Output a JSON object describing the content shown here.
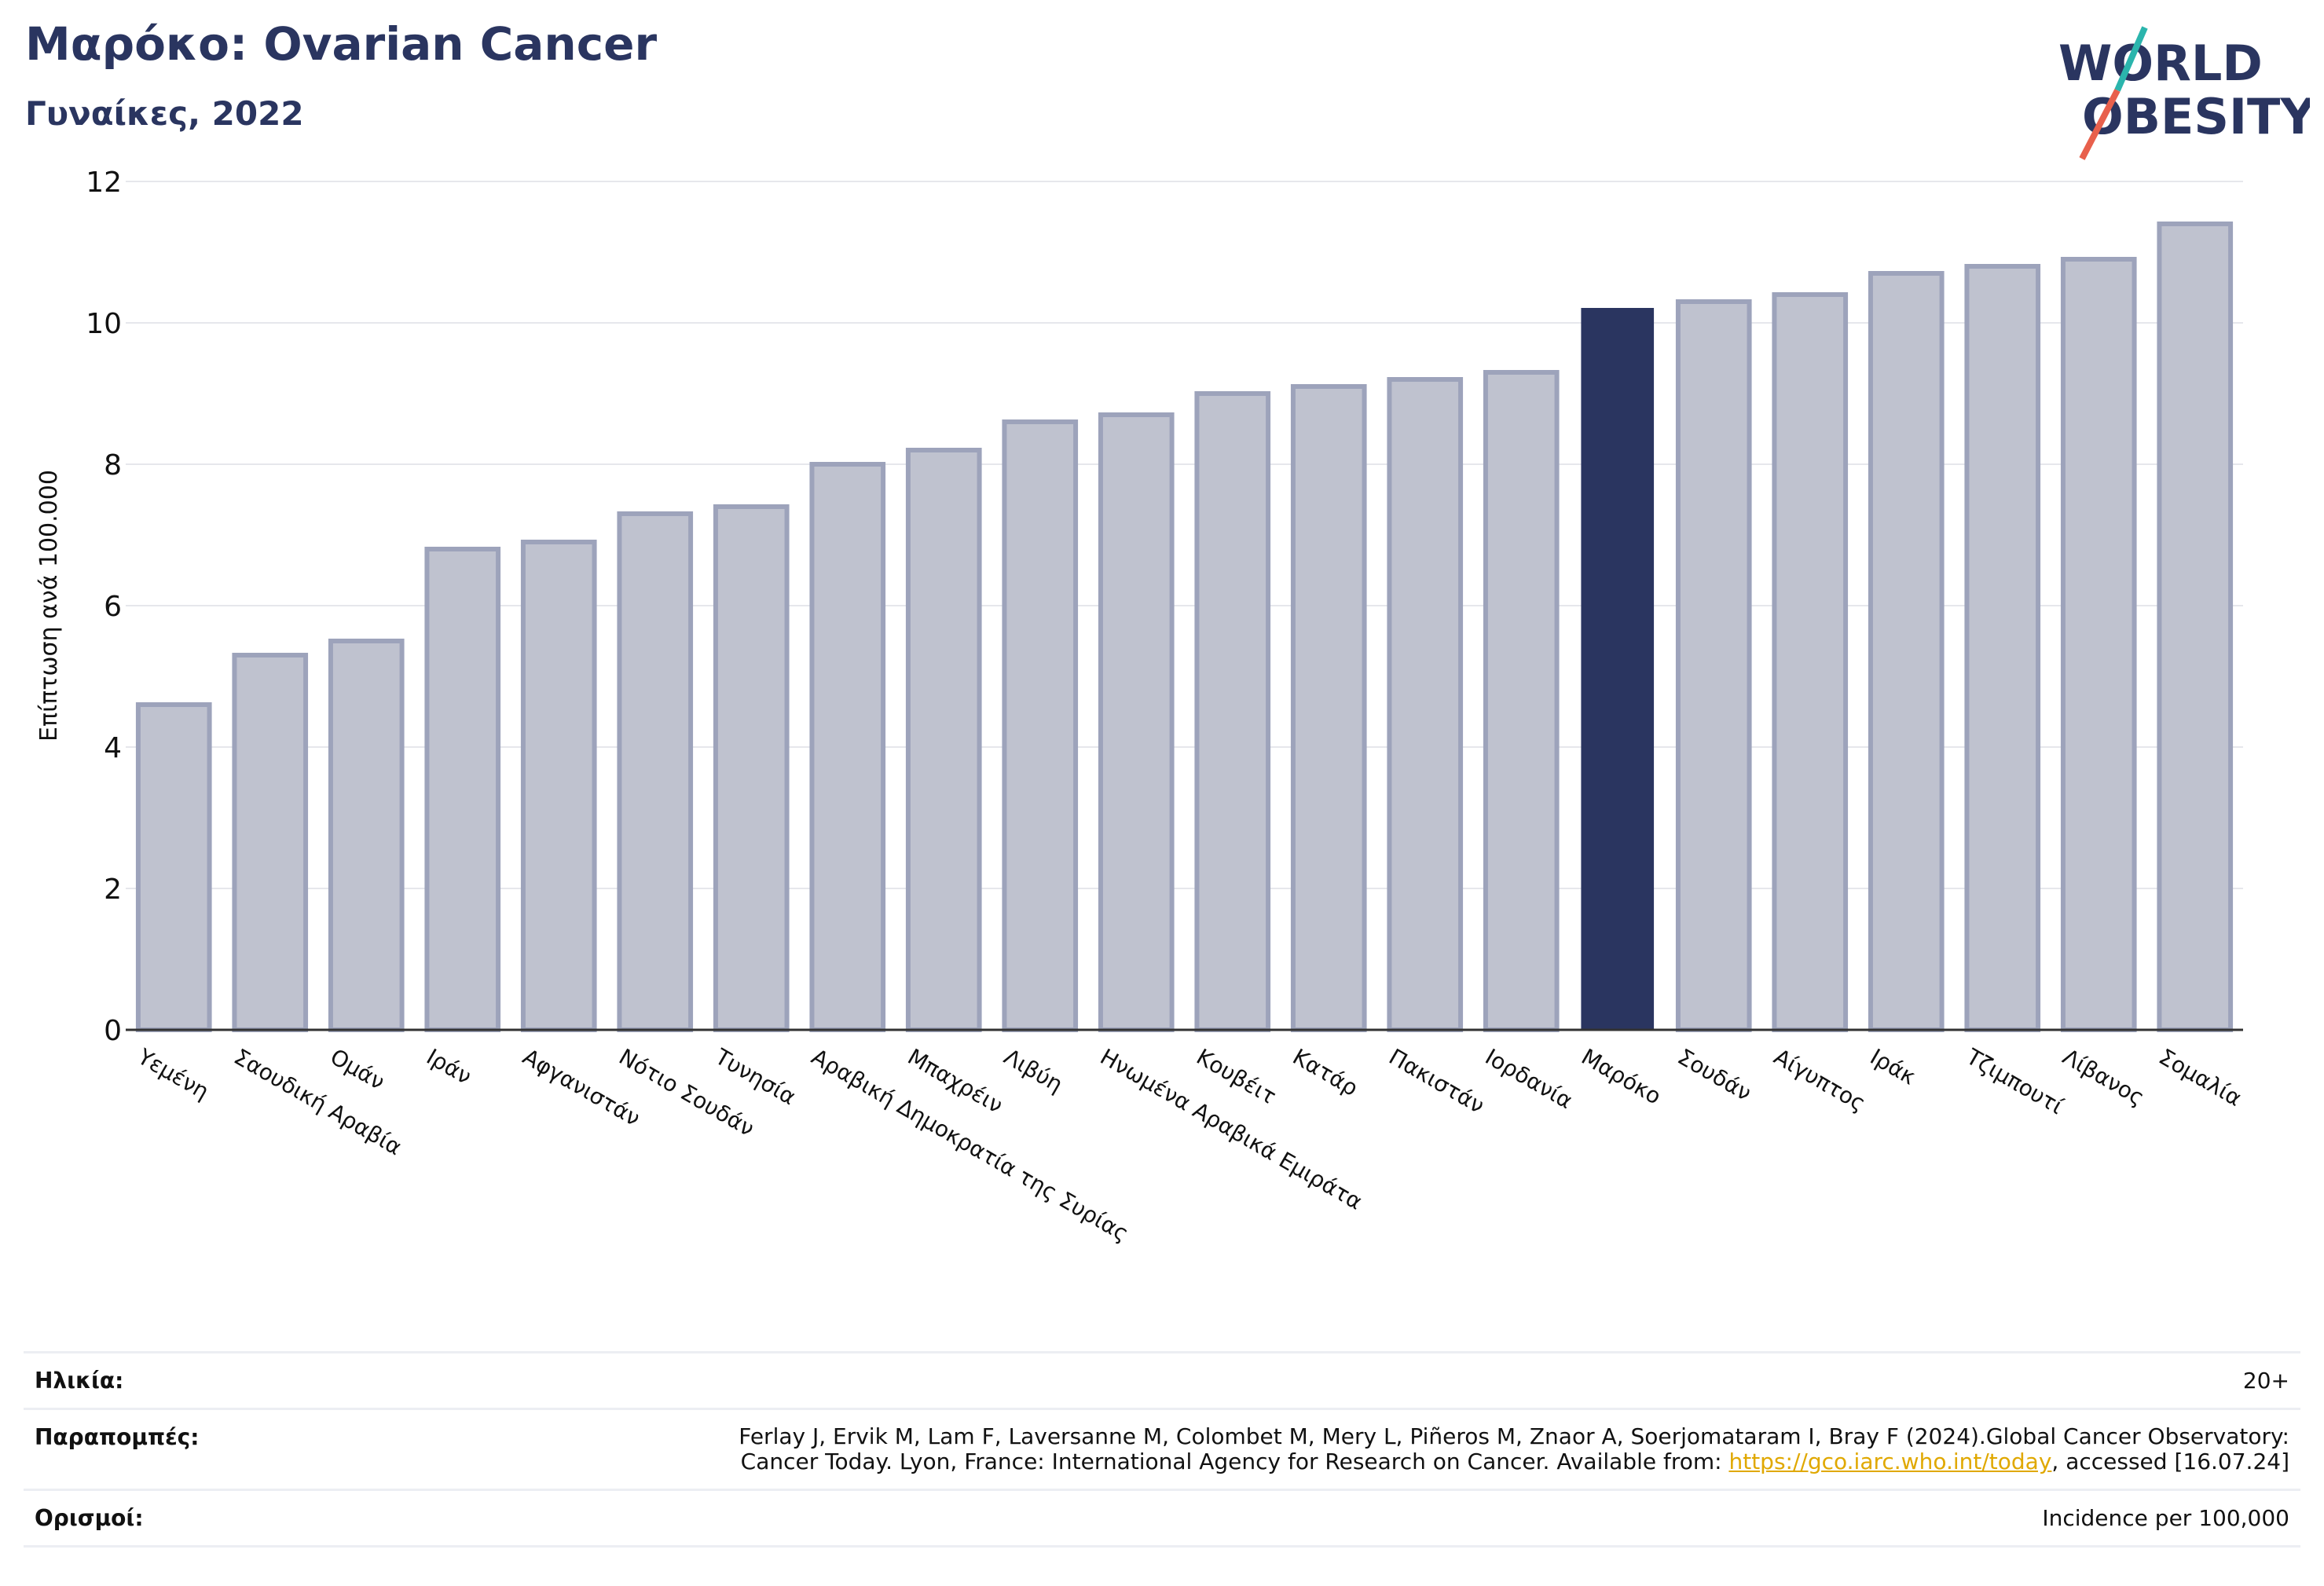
{
  "header": {
    "title": "Μαρόκο: Ovarian Cancer",
    "subtitle": "Γυναίκες, 2022"
  },
  "logo": {
    "line1": "WORLD",
    "line2": "OBESITY",
    "colors": {
      "text": "#2a3560",
      "slash_teal": "#2bb5ad",
      "slash_red": "#e8604c"
    }
  },
  "chart_data": {
    "type": "bar",
    "title": "Μαρόκο: Ovarian Cancer",
    "subtitle": "Γυναίκες, 2022",
    "ylabel": "Επίπτωση ανά 100.000",
    "xlabel": "",
    "ylim": [
      0,
      12
    ],
    "yticks": [
      0,
      2,
      4,
      6,
      8,
      10,
      12
    ],
    "grid": true,
    "highlight": "Μαρόκο",
    "colors": {
      "bar": "#bfc2cf",
      "bar_edge": "#9da3bb",
      "highlight": "#2a3560"
    },
    "categories": [
      "Υεμένη",
      "Σαουδική Αραβία",
      "Ομάν",
      "Ιράν",
      "Αφγανιστάν",
      "Νότιο Σουδάν",
      "Τυνησία",
      "Αραβική Δημοκρατία της Συρίας",
      "Μπαχρέιν",
      "Λιβύη",
      "Ηνωμένα Αραβικά Εμιράτα",
      "Κουβέιτ",
      "Κατάρ",
      "Πακιστάν",
      "Ιορδανία",
      "Μαρόκο",
      "Σουδάν",
      "Αίγυπτος",
      "Ιράκ",
      "Τζιμπουτί",
      "Λίβανος",
      "Σομαλία"
    ],
    "values": [
      4.6,
      5.3,
      5.5,
      6.8,
      6.9,
      7.3,
      7.4,
      8.0,
      8.2,
      8.6,
      8.7,
      9.0,
      9.1,
      9.2,
      9.3,
      10.2,
      10.3,
      10.4,
      10.7,
      10.8,
      10.9,
      11.4
    ]
  },
  "footer": {
    "age_label": "Ηλικία:",
    "age_value": "20+",
    "refs_label": "Παραπομπές:",
    "refs_text_1": "Ferlay J, Ervik M, Lam F, Laversanne M, Colombet M, Mery L, Piñeros M, Znaor A, Soerjomataram I, Bray F (2024).Global Cancer Observatory:",
    "refs_text_2": "Cancer Today. Lyon, France: International Agency for Research on Cancer. Available from: ",
    "refs_link": "https://gco.iarc.who.int/today",
    "refs_text_3": ", accessed [16.07.24]",
    "defs_label": "Ορισμοί:",
    "defs_value": "Incidence per 100,000"
  }
}
